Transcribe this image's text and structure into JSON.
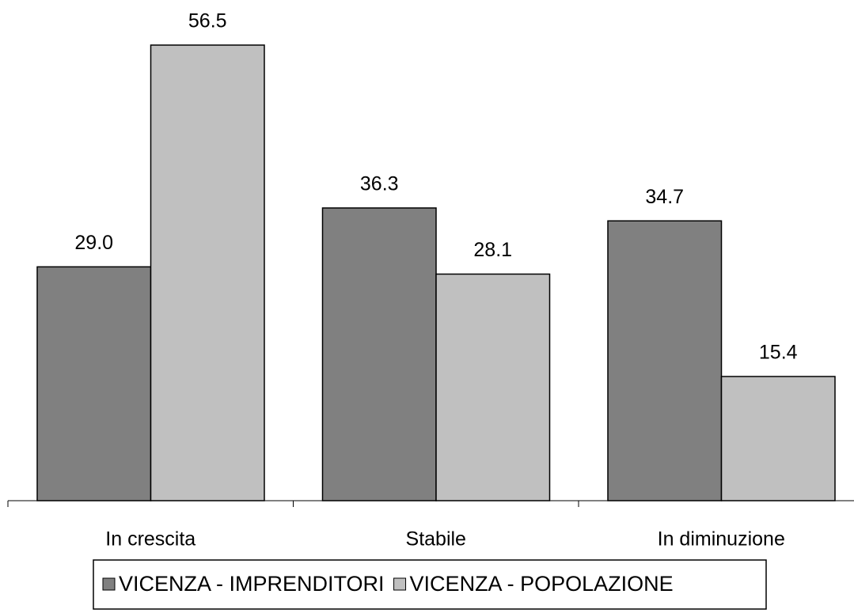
{
  "chart_data": {
    "type": "bar",
    "categories": [
      "In crescita",
      "Stabile",
      "In diminuzione"
    ],
    "series": [
      {
        "name": "VICENZA - IMPRENDITORI",
        "color": "#808080",
        "values": [
          29.0,
          36.3,
          34.7
        ],
        "value_labels": [
          "29.0",
          "36.3",
          "34.7"
        ]
      },
      {
        "name": "VICENZA - POPOLAZIONE",
        "color": "#c0c0c0",
        "values": [
          56.5,
          28.1,
          15.4
        ],
        "value_labels": [
          "56.5",
          "28.1",
          "15.4"
        ]
      }
    ],
    "legend": "bottom"
  }
}
